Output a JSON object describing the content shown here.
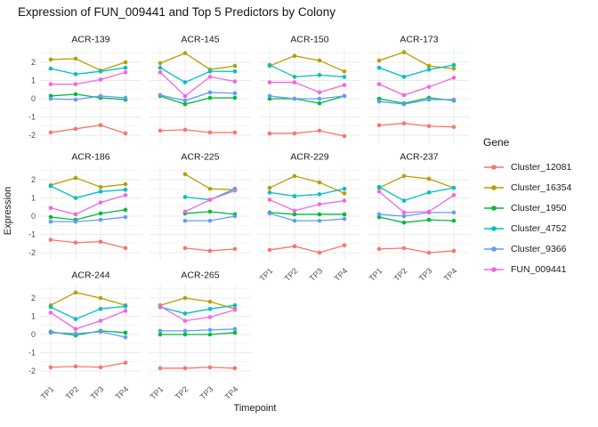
{
  "title": "Expression of FUN_009441 and Top 5 Predictors by Colony",
  "chart_data": {
    "type": "line",
    "title": "Expression of FUN_009441 and Top 5 Predictors by Colony",
    "xlabel": "Timepoint",
    "ylabel": "Expression",
    "x_ticklabels": [
      "TP1",
      "TP2",
      "TP3",
      "TP4"
    ],
    "y_ticks": [
      2,
      1,
      0,
      -1,
      -2
    ],
    "ylim": [
      -2.4,
      2.73
    ],
    "grid": true,
    "legend_title": "Gene",
    "legend_position": "right",
    "grid_color": "#ebebeb",
    "tick_label_color": "#4d4d4d",
    "series": [
      {
        "name": "Cluster_12081",
        "color": "#F8766D"
      },
      {
        "name": "Cluster_16354",
        "color": "#B79F00"
      },
      {
        "name": "Cluster_1950",
        "color": "#00BA38"
      },
      {
        "name": "Cluster_4752",
        "color": "#00BFC4"
      },
      {
        "name": "Cluster_9366",
        "color": "#619CFF"
      },
      {
        "name": "FUN_009441",
        "color": "#F564E3"
      }
    ],
    "facets": [
      {
        "name": "ACR-139",
        "values": [
          [
            -1.85,
            -1.65,
            -1.45,
            -1.9
          ],
          [
            2.15,
            2.2,
            1.55,
            2.0
          ],
          [
            0.15,
            0.25,
            0.05,
            -0.05
          ],
          [
            1.65,
            1.35,
            1.5,
            1.7
          ],
          [
            0.0,
            -0.05,
            0.15,
            0.05
          ],
          [
            0.8,
            0.8,
            1.05,
            1.45
          ]
        ]
      },
      {
        "name": "ACR-145",
        "values": [
          [
            -1.75,
            -1.7,
            -1.85,
            -1.85
          ],
          [
            1.95,
            2.5,
            1.6,
            1.8
          ],
          [
            0.15,
            -0.3,
            0.05,
            0.05
          ],
          [
            1.7,
            0.9,
            1.5,
            1.5
          ],
          [
            0.2,
            -0.1,
            0.35,
            0.3
          ],
          [
            1.45,
            0.15,
            1.2,
            0.95
          ]
        ]
      },
      {
        "name": "ACR-150",
        "values": [
          [
            -1.9,
            -1.9,
            -1.75,
            -2.05
          ],
          [
            1.8,
            2.35,
            2.1,
            1.5
          ],
          [
            0.0,
            0.0,
            -0.25,
            0.15
          ],
          [
            1.85,
            1.2,
            1.3,
            1.2
          ],
          [
            0.15,
            0.0,
            0.0,
            0.15
          ],
          [
            0.9,
            0.9,
            0.35,
            0.75
          ]
        ]
      },
      {
        "name": "ACR-173",
        "values": [
          [
            -1.45,
            -1.35,
            -1.5,
            -1.55
          ],
          [
            2.1,
            2.55,
            1.8,
            1.65
          ],
          [
            0.0,
            -0.25,
            0.05,
            -0.1
          ],
          [
            1.7,
            1.2,
            1.6,
            1.85
          ],
          [
            -0.15,
            -0.3,
            -0.05,
            -0.05
          ],
          [
            0.8,
            0.2,
            0.65,
            1.15
          ]
        ]
      },
      {
        "name": "ACR-186",
        "values": [
          [
            -1.3,
            -1.45,
            -1.4,
            -1.75
          ],
          [
            1.7,
            2.1,
            1.6,
            1.75
          ],
          [
            -0.05,
            -0.2,
            0.15,
            0.35
          ],
          [
            1.65,
            1.0,
            1.35,
            1.45
          ],
          [
            -0.3,
            -0.3,
            -0.2,
            -0.05
          ],
          [
            0.45,
            0.1,
            0.75,
            1.15
          ]
        ]
      },
      {
        "name": "ACR-225",
        "values": [
          [
            null,
            -1.75,
            -1.9,
            -1.8
          ],
          [
            null,
            2.3,
            1.5,
            1.45
          ],
          [
            null,
            0.15,
            0.25,
            0.1
          ],
          [
            null,
            1.05,
            0.9,
            1.5
          ],
          [
            null,
            -0.25,
            -0.25,
            0.0
          ],
          [
            null,
            0.25,
            0.9,
            1.4
          ]
        ]
      },
      {
        "name": "ACR-229",
        "values": [
          [
            -1.85,
            -1.65,
            -2.0,
            -1.6
          ],
          [
            1.55,
            2.2,
            1.85,
            1.25
          ],
          [
            0.2,
            0.1,
            0.1,
            0.1
          ],
          [
            1.3,
            1.1,
            1.2,
            1.5
          ],
          [
            0.15,
            -0.25,
            -0.25,
            -0.15
          ],
          [
            0.9,
            0.3,
            0.65,
            0.85
          ]
        ]
      },
      {
        "name": "ACR-237",
        "values": [
          [
            -1.8,
            -1.75,
            -2.0,
            -1.9
          ],
          [
            1.55,
            2.2,
            2.05,
            1.55
          ],
          [
            -0.05,
            -0.35,
            -0.2,
            -0.25
          ],
          [
            1.6,
            0.85,
            1.3,
            1.55
          ],
          [
            0.1,
            0.0,
            0.2,
            0.2
          ],
          [
            1.35,
            0.2,
            0.25,
            1.15
          ]
        ]
      },
      {
        "name": "ACR-244",
        "values": [
          [
            -1.8,
            -1.75,
            -1.8,
            -1.55
          ],
          [
            1.6,
            2.3,
            2.0,
            1.6
          ],
          [
            0.15,
            -0.05,
            0.2,
            0.1
          ],
          [
            1.5,
            0.85,
            1.4,
            1.55
          ],
          [
            0.1,
            0.05,
            0.15,
            -0.15
          ],
          [
            1.2,
            0.3,
            0.75,
            1.3
          ]
        ]
      },
      {
        "name": "ACR-265",
        "values": [
          [
            -1.85,
            -1.85,
            -1.8,
            -1.85
          ],
          [
            1.6,
            2.0,
            1.8,
            1.4
          ],
          [
            0.0,
            0.0,
            0.0,
            0.1
          ],
          [
            1.5,
            1.15,
            1.4,
            1.6
          ],
          [
            0.2,
            0.2,
            0.25,
            0.3
          ],
          [
            1.55,
            0.75,
            0.95,
            1.35
          ]
        ]
      }
    ]
  }
}
